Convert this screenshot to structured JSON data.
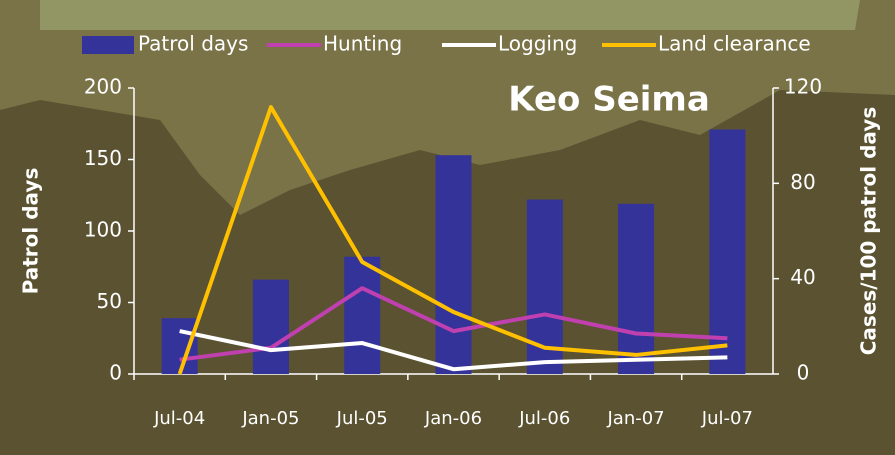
{
  "chart_data": {
    "type": "bar",
    "title": "Keo Seima",
    "categories": [
      "Jul-04",
      "Jan-05",
      "Jul-05",
      "Jan-06",
      "Jul-06",
      "Jan-07",
      "Jul-07"
    ],
    "y_label": "Patrol days",
    "y2_label": "Cases/100 patrol days",
    "ylim": [
      0,
      200
    ],
    "yticks": [
      0,
      50,
      100,
      150,
      200
    ],
    "y2lim": [
      0,
      120
    ],
    "y2ticks": [
      0,
      40,
      80,
      120
    ],
    "series": [
      {
        "name": "Patrol days",
        "type": "bar",
        "color": "#33339a",
        "values": [
          39,
          66,
          82,
          153,
          122,
          119,
          171
        ]
      },
      {
        "name": "Hunting",
        "type": "line",
        "axis": "y2",
        "color": "#c040b0",
        "values": [
          6,
          11,
          36,
          18,
          25,
          17,
          15
        ]
      },
      {
        "name": "Logging",
        "type": "line",
        "axis": "y2",
        "color": "#ffffff",
        "values": [
          18,
          10,
          13,
          2,
          5,
          6,
          7
        ]
      },
      {
        "name": "Land clearance",
        "type": "line",
        "axis": "y2",
        "color": "#ffc000",
        "values": [
          0,
          112,
          47,
          26,
          11,
          8,
          12
        ]
      }
    ]
  }
}
